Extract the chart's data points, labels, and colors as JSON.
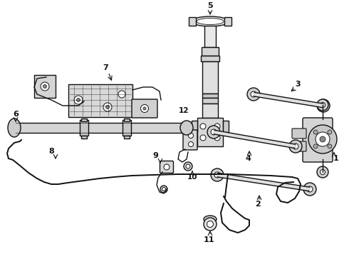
{
  "bg_color": "#ffffff",
  "line_color": "#111111",
  "figsize": [
    4.9,
    3.6
  ],
  "dpi": 100,
  "xlim": [
    0,
    490
  ],
  "ylim": [
    0,
    360
  ]
}
